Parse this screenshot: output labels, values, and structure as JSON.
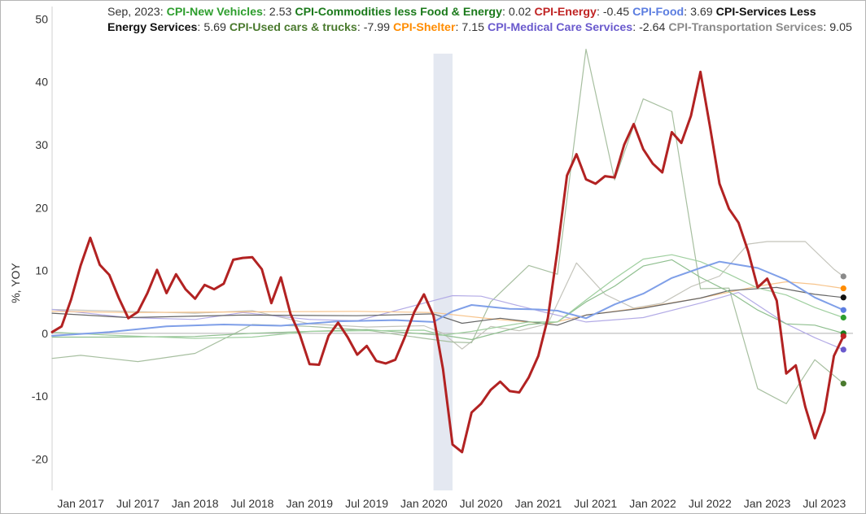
{
  "chart_data": {
    "type": "line",
    "ylabel": "%, YOY",
    "ylim": [
      -25,
      52
    ],
    "yticks": [
      -20,
      -10,
      0,
      10,
      20,
      30,
      40,
      50
    ],
    "x_start": "2016-10",
    "x_end": "2023-10",
    "xticks": [
      {
        "date": "2017-01",
        "label": "Jan 2017"
      },
      {
        "date": "2017-07",
        "label": "Jul 2017"
      },
      {
        "date": "2018-01",
        "label": "Jan 2018"
      },
      {
        "date": "2018-07",
        "label": "Jul 2018"
      },
      {
        "date": "2019-01",
        "label": "Jan 2019"
      },
      {
        "date": "2019-07",
        "label": "Jul 2019"
      },
      {
        "date": "2020-01",
        "label": "Jan 2020"
      },
      {
        "date": "2020-07",
        "label": "Jul 2020"
      },
      {
        "date": "2021-01",
        "label": "Jan 2021"
      },
      {
        "date": "2021-07",
        "label": "Jul 2021"
      },
      {
        "date": "2022-01",
        "label": "Jan 2022"
      },
      {
        "date": "2022-07",
        "label": "Jul 2022"
      },
      {
        "date": "2023-01",
        "label": "Jan 2023"
      },
      {
        "date": "2023-07",
        "label": "Jul 2023"
      }
    ],
    "recession": {
      "start": "2020-02",
      "end": "2020-04"
    },
    "legend_date": "Sep, 2023",
    "series": [
      {
        "name": "CPI-New Vehicles",
        "color": "#2e9e2e",
        "line_color": "#9fcf9f",
        "width": 1.2,
        "last": "2.53",
        "x": [
          "2016-10",
          "2017-04",
          "2018-01",
          "2018-07",
          "2019-01",
          "2019-07",
          "2020-01",
          "2020-03",
          "2020-06",
          "2020-12",
          "2021-03",
          "2021-06",
          "2021-09",
          "2021-12",
          "2022-03",
          "2022-06",
          "2022-09",
          "2022-12",
          "2023-03",
          "2023-06",
          "2023-09"
        ],
        "y": [
          0.2,
          -0.3,
          -0.8,
          -0.6,
          0.3,
          0.4,
          0.5,
          -0.3,
          0.3,
          1.8,
          1.8,
          5.3,
          8.7,
          11.8,
          12.5,
          11.4,
          9.4,
          7.2,
          6.1,
          4.1,
          2.5
        ]
      },
      {
        "name": "CPI-Commodities less Food & Energy",
        "color": "#1b7a1b",
        "line_color": "#8fbf8f",
        "width": 1.2,
        "last": "0.02",
        "x": [
          "2016-10",
          "2017-04",
          "2018-01",
          "2018-07",
          "2019-01",
          "2019-07",
          "2020-01",
          "2020-03",
          "2020-06",
          "2020-12",
          "2021-03",
          "2021-06",
          "2021-09",
          "2021-12",
          "2022-03",
          "2022-06",
          "2022-09",
          "2022-12",
          "2023-03",
          "2023-06",
          "2023-09"
        ],
        "y": [
          -0.6,
          -0.6,
          -0.5,
          0.0,
          0.3,
          0.6,
          -0.1,
          -0.3,
          -1.0,
          1.4,
          1.8,
          5.0,
          7.5,
          10.7,
          11.7,
          8.9,
          6.6,
          3.7,
          1.5,
          1.3,
          0.0
        ]
      },
      {
        "name": "CPI-Energy",
        "color": "#c02424",
        "line_color": "#b22222",
        "width": 3,
        "last": "-0.45",
        "x": [
          "2016-10",
          "2016-11",
          "2016-12",
          "2017-01",
          "2017-02",
          "2017-03",
          "2017-04",
          "2017-05",
          "2017-06",
          "2017-07",
          "2017-08",
          "2017-09",
          "2017-10",
          "2017-11",
          "2017-12",
          "2018-01",
          "2018-02",
          "2018-03",
          "2018-04",
          "2018-05",
          "2018-06",
          "2018-07",
          "2018-08",
          "2018-09",
          "2018-10",
          "2018-11",
          "2018-12",
          "2019-01",
          "2019-02",
          "2019-03",
          "2019-04",
          "2019-05",
          "2019-06",
          "2019-07",
          "2019-08",
          "2019-09",
          "2019-10",
          "2019-11",
          "2019-12",
          "2020-01",
          "2020-02",
          "2020-03",
          "2020-04",
          "2020-05",
          "2020-06",
          "2020-07",
          "2020-08",
          "2020-09",
          "2020-10",
          "2020-11",
          "2020-12",
          "2021-01",
          "2021-02",
          "2021-03",
          "2021-04",
          "2021-05",
          "2021-06",
          "2021-07",
          "2021-08",
          "2021-09",
          "2021-10",
          "2021-11",
          "2021-12",
          "2022-01",
          "2022-02",
          "2022-03",
          "2022-04",
          "2022-05",
          "2022-06",
          "2022-07",
          "2022-08",
          "2022-09",
          "2022-10",
          "2022-11",
          "2022-12",
          "2023-01",
          "2023-02",
          "2023-03",
          "2023-04",
          "2023-05",
          "2023-06",
          "2023-07",
          "2023-08",
          "2023-09"
        ],
        "y": [
          0.2,
          1.1,
          5.4,
          10.8,
          15.2,
          10.9,
          9.3,
          5.6,
          2.4,
          3.4,
          6.4,
          10.1,
          6.4,
          9.4,
          7.0,
          5.5,
          7.7,
          7.0,
          7.9,
          11.7,
          12.0,
          12.1,
          10.2,
          4.8,
          8.9,
          3.1,
          -0.3,
          -4.9,
          -5.0,
          -0.4,
          1.7,
          -0.6,
          -3.4,
          -2.0,
          -4.4,
          -4.8,
          -4.2,
          -0.6,
          3.4,
          6.2,
          2.8,
          -5.7,
          -17.7,
          -18.9,
          -12.6,
          -11.2,
          -9.0,
          -7.7,
          -9.2,
          -9.4,
          -7.0,
          -3.6,
          2.4,
          13.2,
          25.1,
          28.5,
          24.5,
          23.8,
          25.0,
          24.8,
          30.0,
          33.3,
          29.3,
          27.0,
          25.6,
          32.0,
          30.3,
          34.6,
          41.6,
          32.9,
          23.8,
          19.8,
          17.6,
          13.1,
          7.3,
          8.7,
          5.2,
          -6.4,
          -5.1,
          -11.7,
          -16.7,
          -12.5,
          -3.6,
          -0.45
        ]
      },
      {
        "name": "CPI-Food",
        "color": "#5b7de0",
        "line_color": "#7f9fe8",
        "width": 2,
        "last": "3.69",
        "x": [
          "2016-10",
          "2017-04",
          "2017-10",
          "2018-04",
          "2018-10",
          "2019-04",
          "2019-10",
          "2020-02",
          "2020-04",
          "2020-06",
          "2020-10",
          "2021-01",
          "2021-03",
          "2021-06",
          "2021-09",
          "2021-12",
          "2022-03",
          "2022-06",
          "2022-08",
          "2022-10",
          "2022-12",
          "2023-03",
          "2023-06",
          "2023-09"
        ],
        "y": [
          -0.4,
          0.2,
          1.1,
          1.4,
          1.2,
          1.9,
          2.1,
          1.8,
          3.5,
          4.5,
          3.9,
          3.8,
          3.6,
          2.4,
          4.6,
          6.3,
          8.8,
          10.4,
          11.4,
          10.9,
          10.4,
          8.5,
          5.7,
          3.7
        ]
      },
      {
        "name": "CPI-Services Less Energy Services",
        "color": "#111111",
        "line_color": "#666666",
        "width": 1.2,
        "last": "5.69",
        "x": [
          "2016-10",
          "2017-06",
          "2018-06",
          "2019-06",
          "2020-02",
          "2020-05",
          "2020-09",
          "2021-03",
          "2021-06",
          "2021-12",
          "2022-06",
          "2022-09",
          "2023-02",
          "2023-06",
          "2023-09"
        ],
        "y": [
          3.2,
          2.5,
          2.9,
          2.8,
          3.1,
          1.6,
          2.4,
          1.3,
          2.9,
          4.0,
          5.6,
          6.8,
          7.3,
          6.2,
          5.7
        ]
      },
      {
        "name": "CPI-Used cars & trucks",
        "color": "#4a7a2e",
        "line_color": "#a7bfa0",
        "width": 1.2,
        "last": "-7.99",
        "x": [
          "2016-10",
          "2017-01",
          "2017-07",
          "2018-01",
          "2018-07",
          "2019-01",
          "2019-07",
          "2020-01",
          "2020-04",
          "2020-06",
          "2020-08",
          "2020-12",
          "2021-03",
          "2021-06",
          "2021-09",
          "2021-12",
          "2022-03",
          "2022-06",
          "2022-09",
          "2022-12",
          "2023-03",
          "2023-06",
          "2023-09"
        ],
        "y": [
          -4.0,
          -3.5,
          -4.5,
          -3.2,
          1.4,
          1.1,
          0.5,
          -0.8,
          -1.4,
          -1.5,
          5.0,
          10.8,
          9.4,
          45.2,
          24.4,
          37.3,
          35.3,
          7.1,
          7.2,
          -8.8,
          -11.2,
          -4.2,
          -8.0
        ]
      },
      {
        "name": "CPI-Shelter",
        "color": "#ff8c00",
        "line_color": "#f7c48c",
        "width": 1.2,
        "last": "7.15",
        "x": [
          "2016-10",
          "2017-06",
          "2018-06",
          "2019-06",
          "2020-02",
          "2020-08",
          "2021-02",
          "2021-06",
          "2021-12",
          "2022-06",
          "2022-12",
          "2023-03",
          "2023-06",
          "2023-09"
        ],
        "y": [
          3.5,
          3.3,
          3.4,
          3.5,
          3.3,
          2.3,
          1.5,
          2.9,
          4.1,
          5.6,
          7.5,
          8.2,
          7.8,
          7.15
        ]
      },
      {
        "name": "CPI-Medical Care Services",
        "color": "#6a5acd",
        "line_color": "#b3abe6",
        "width": 1.2,
        "last": "-2.64",
        "x": [
          "2016-10",
          "2017-06",
          "2018-01",
          "2018-06",
          "2019-01",
          "2019-06",
          "2020-01",
          "2020-04",
          "2020-07",
          "2021-01",
          "2021-06",
          "2021-12",
          "2022-06",
          "2022-10",
          "2023-03",
          "2023-06",
          "2023-09"
        ],
        "y": [
          3.8,
          2.5,
          2.2,
          3.3,
          2.2,
          2.0,
          4.8,
          6.0,
          5.9,
          3.6,
          1.8,
          2.5,
          4.8,
          6.5,
          1.5,
          -0.7,
          -2.6
        ]
      },
      {
        "name": "CPI-Transportation Services",
        "color": "#8a8a8a",
        "line_color": "#c4c4bb",
        "width": 1.2,
        "last": "9.05",
        "x": [
          "2016-10",
          "2017-06",
          "2018-01",
          "2018-07",
          "2019-01",
          "2019-07",
          "2020-01",
          "2020-03",
          "2020-05",
          "2020-08",
          "2020-11",
          "2021-02",
          "2021-05",
          "2021-08",
          "2021-11",
          "2022-02",
          "2022-05",
          "2022-08",
          "2022-11",
          "2023-01",
          "2023-05",
          "2023-08",
          "2023-09"
        ],
        "y": [
          3.8,
          3.5,
          3.2,
          3.6,
          1.5,
          1.0,
          1.2,
          0.0,
          -2.5,
          1.1,
          0.4,
          1.5,
          11.2,
          6.2,
          4.0,
          4.8,
          7.4,
          9.1,
          14.2,
          14.6,
          14.6,
          10.2,
          9.05
        ]
      }
    ]
  }
}
